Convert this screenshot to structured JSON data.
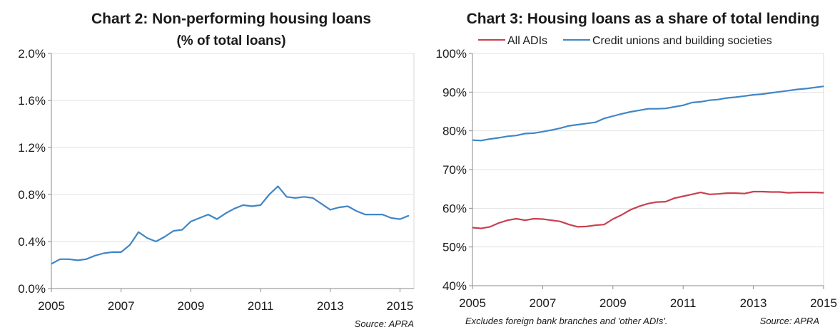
{
  "chart_data": [
    {
      "id": "chart2",
      "type": "line",
      "title": "Chart 2: Non-performing housing loans",
      "subtitle": "(% of total loans)",
      "xlabel": "",
      "ylabel": "",
      "xlim": [
        2005,
        2015.4
      ],
      "ylim": [
        0,
        2.0
      ],
      "yticks": [
        "0.0%",
        "0.4%",
        "0.8%",
        "1.2%",
        "1.6%",
        "2.0%"
      ],
      "ytick_values": [
        0,
        0.4,
        0.8,
        1.2,
        1.6,
        2.0
      ],
      "xticks": [
        "2005",
        "2007",
        "2009",
        "2011",
        "2013",
        "2015"
      ],
      "xtick_values": [
        2005,
        2007,
        2009,
        2011,
        2013,
        2015
      ],
      "grid": true,
      "source": "Source: APRA",
      "series": [
        {
          "name": "",
          "color": "#3f86c6",
          "x": [
            2005.0,
            2005.25,
            2005.5,
            2005.75,
            2006.0,
            2006.25,
            2006.5,
            2006.75,
            2007.0,
            2007.25,
            2007.5,
            2007.75,
            2008.0,
            2008.25,
            2008.5,
            2008.75,
            2009.0,
            2009.25,
            2009.5,
            2009.75,
            2010.0,
            2010.25,
            2010.5,
            2010.75,
            2011.0,
            2011.25,
            2011.5,
            2011.75,
            2012.0,
            2012.25,
            2012.5,
            2012.75,
            2013.0,
            2013.25,
            2013.5,
            2013.75,
            2014.0,
            2014.25,
            2014.5,
            2014.75,
            2015.0,
            2015.25
          ],
          "values": [
            0.21,
            0.25,
            0.25,
            0.24,
            0.25,
            0.28,
            0.3,
            0.31,
            0.31,
            0.37,
            0.48,
            0.43,
            0.4,
            0.44,
            0.49,
            0.5,
            0.57,
            0.6,
            0.63,
            0.59,
            0.64,
            0.68,
            0.71,
            0.7,
            0.71,
            0.8,
            0.87,
            0.78,
            0.77,
            0.78,
            0.77,
            0.72,
            0.67,
            0.69,
            0.7,
            0.66,
            0.63,
            0.63,
            0.63,
            0.6,
            0.59,
            0.62
          ]
        }
      ]
    },
    {
      "id": "chart3",
      "type": "line",
      "title": "Chart 3: Housing loans as a share of total lending",
      "xlabel": "",
      "ylabel": "",
      "xlim": [
        2005,
        2015
      ],
      "ylim": [
        40,
        100
      ],
      "yticks": [
        "40%",
        "50%",
        "60%",
        "70%",
        "80%",
        "90%",
        "100%"
      ],
      "ytick_values": [
        40,
        50,
        60,
        70,
        80,
        90,
        100
      ],
      "xticks": [
        "2005",
        "2007",
        "2009",
        "2011",
        "2013",
        "2015"
      ],
      "xtick_values": [
        2005,
        2007,
        2009,
        2011,
        2013,
        2015
      ],
      "grid": true,
      "legend_position": "top",
      "note": "Excludes foreign bank branches and 'other ADIs'.",
      "source": "Source: APRA",
      "series": [
        {
          "name": "All ADIs",
          "color": "#c8404f",
          "x": [
            2005.0,
            2005.25,
            2005.5,
            2005.75,
            2006.0,
            2006.25,
            2006.5,
            2006.75,
            2007.0,
            2007.25,
            2007.5,
            2007.75,
            2008.0,
            2008.25,
            2008.5,
            2008.75,
            2009.0,
            2009.25,
            2009.5,
            2009.75,
            2010.0,
            2010.25,
            2010.5,
            2010.75,
            2011.0,
            2011.25,
            2011.5,
            2011.75,
            2012.0,
            2012.25,
            2012.5,
            2012.75,
            2013.0,
            2013.25,
            2013.5,
            2013.75,
            2014.0,
            2014.25,
            2014.5,
            2014.75,
            2015.0
          ],
          "values": [
            55.0,
            54.8,
            55.2,
            56.2,
            56.9,
            57.3,
            56.9,
            57.3,
            57.2,
            56.9,
            56.6,
            55.8,
            55.2,
            55.3,
            55.6,
            55.8,
            57.2,
            58.3,
            59.6,
            60.5,
            61.2,
            61.6,
            61.7,
            62.6,
            63.1,
            63.6,
            64.1,
            63.6,
            63.7,
            63.9,
            63.9,
            63.8,
            64.3,
            64.3,
            64.2,
            64.2,
            64.0,
            64.1,
            64.1,
            64.1,
            64.0
          ]
        },
        {
          "name": "Credit unions and building societies",
          "color": "#3f86c6",
          "x": [
            2005.0,
            2005.25,
            2005.5,
            2005.75,
            2006.0,
            2006.25,
            2006.5,
            2006.75,
            2007.0,
            2007.25,
            2007.5,
            2007.75,
            2008.0,
            2008.25,
            2008.5,
            2008.75,
            2009.0,
            2009.25,
            2009.5,
            2009.75,
            2010.0,
            2010.25,
            2010.5,
            2010.75,
            2011.0,
            2011.25,
            2011.5,
            2011.75,
            2012.0,
            2012.25,
            2012.5,
            2012.75,
            2013.0,
            2013.25,
            2013.5,
            2013.75,
            2014.0,
            2014.25,
            2014.5,
            2014.75,
            2015.0
          ],
          "values": [
            77.6,
            77.5,
            77.9,
            78.2,
            78.6,
            78.8,
            79.3,
            79.4,
            79.8,
            80.2,
            80.7,
            81.3,
            81.6,
            81.9,
            82.2,
            83.2,
            83.8,
            84.4,
            84.9,
            85.3,
            85.7,
            85.7,
            85.8,
            86.2,
            86.6,
            87.3,
            87.5,
            87.9,
            88.1,
            88.5,
            88.7,
            89.0,
            89.3,
            89.5,
            89.8,
            90.1,
            90.4,
            90.7,
            90.9,
            91.2,
            91.5
          ]
        }
      ]
    }
  ]
}
